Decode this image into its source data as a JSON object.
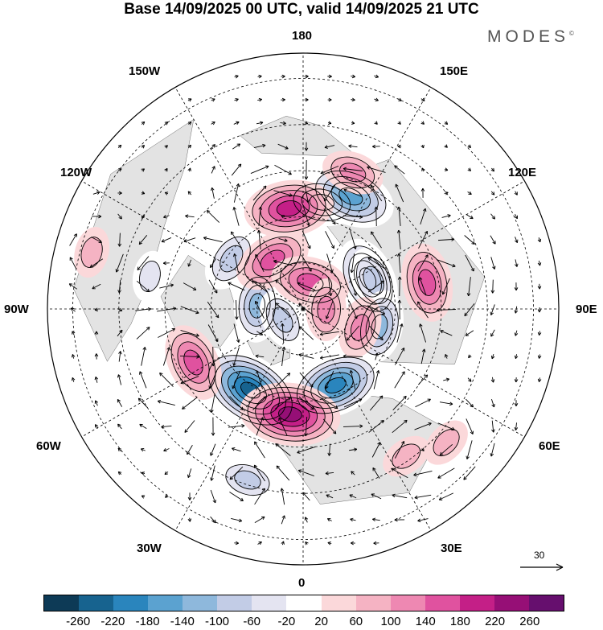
{
  "title": "Base 14/09/2025 00 UTC, valid 14/09/2025 21 UTC",
  "brand": "MODES",
  "brand_mark": "©",
  "longitude_labels": {
    "n180": "180",
    "w150": "150W",
    "e150": "150E",
    "w120": "120W",
    "e120": "120E",
    "w90": "90W",
    "e90": "90E",
    "w60": "60W",
    "e60": "60E",
    "w30": "30W",
    "e30": "30E",
    "s0": "0"
  },
  "reference_vector": {
    "label": "30"
  },
  "colorbar": {
    "colors": [
      "#0d3a56",
      "#17638f",
      "#2a85bd",
      "#5ba2d0",
      "#8eb8dc",
      "#c2cce6",
      "#e4e4f1",
      "#ffffff",
      "#fbd8da",
      "#f5b3c3",
      "#ee88b2",
      "#e0529f",
      "#c41f87",
      "#960f76",
      "#660f6e"
    ],
    "tick_labels": [
      "-260",
      "-220",
      "-180",
      "-140",
      "-100",
      "-60",
      "-20",
      "20",
      "60",
      "100",
      "140",
      "180",
      "220",
      "260"
    ]
  },
  "anomaly_centers": [
    {
      "value": -140,
      "lon_deg": 170,
      "colat_deg": 47
    },
    {
      "value": -200,
      "lon_deg": 157,
      "colat_deg": 53
    },
    {
      "value": -180,
      "lon_deg": 115,
      "colat_deg": 31
    },
    {
      "value": -120,
      "lon_deg": 112,
      "colat_deg": 33
    },
    {
      "value": -140,
      "lon_deg": 77,
      "colat_deg": 34
    },
    {
      "value": -220,
      "lon_deg": 23,
      "colat_deg": 36
    },
    {
      "value": -260,
      "lon_deg": -33,
      "colat_deg": 42
    },
    {
      "value": -100,
      "lon_deg": -18,
      "colat_deg": 78
    },
    {
      "value": -120,
      "lon_deg": -125,
      "colat_deg": 38
    },
    {
      "value": -140,
      "lon_deg": -94,
      "colat_deg": 20
    },
    {
      "value": -100,
      "lon_deg": -62,
      "colat_deg": 10
    },
    {
      "value": -60,
      "lon_deg": -102,
      "colat_deg": 68
    },
    {
      "value": 160,
      "lon_deg": -148,
      "colat_deg": 25
    },
    {
      "value": 160,
      "lon_deg": 165,
      "colat_deg": 12
    },
    {
      "value": 200,
      "lon_deg": -172,
      "colat_deg": 44
    },
    {
      "value": 160,
      "lon_deg": -64,
      "colat_deg": 53
    },
    {
      "value": 240,
      "lon_deg": -7,
      "colat_deg": 46
    },
    {
      "value": 160,
      "lon_deg": 102,
      "colat_deg": 55
    },
    {
      "value": 100,
      "lon_deg": 88,
      "colat_deg": 10
    },
    {
      "value": 100,
      "lon_deg": 72,
      "colat_deg": 26
    },
    {
      "value": 60,
      "lon_deg": 47,
      "colat_deg": 85
    },
    {
      "value": 100,
      "lon_deg": 160,
      "colat_deg": 63
    },
    {
      "value": 60,
      "lon_deg": 35,
      "colat_deg": 78
    },
    {
      "value": 60,
      "lon_deg": -105,
      "colat_deg": 95
    }
  ]
}
